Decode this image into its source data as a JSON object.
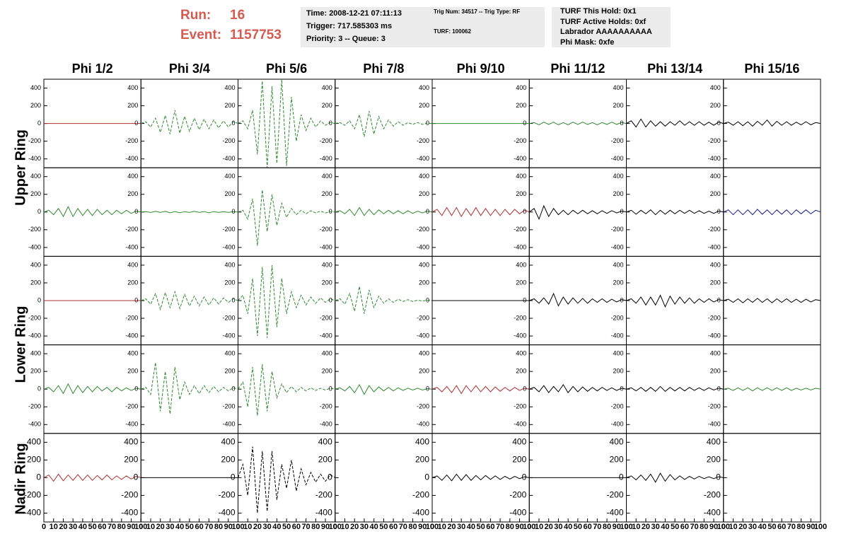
{
  "header": {
    "run_label": "Run:",
    "run": 16,
    "event_label": "Event:",
    "event": 1157753
  },
  "info_boxes": [
    [
      "Time: 2008-12-21 07:11:13",
      "Trigger: 717.585303 ms",
      "Priority: 3 -- Queue: 3"
    ],
    [
      "Trig Num: 34517 -- Trig Type: RF",
      "TURF: 100062"
    ],
    [
      "TURF This Hold: 0x1",
      "TURF Active Holds: 0xf",
      "Labrador AAAAAAAAAA",
      "Phi Mask: 0xfe"
    ]
  ],
  "columns": [
    "Phi 1/2",
    "Phi 3/4",
    "Phi 5/6",
    "Phi 7/8",
    "Phi 9/10",
    "Phi 11/12",
    "Phi 13/14",
    "Phi 15/16"
  ],
  "row_labels": [
    "Upper Ring",
    "Lower Ring",
    "Nadir Ring"
  ],
  "x": [
    0,
    5,
    10,
    15,
    20,
    25,
    30,
    35,
    40,
    45,
    50,
    55,
    60,
    65,
    70,
    75,
    80,
    85,
    90,
    95,
    100
  ],
  "xlim": [
    0,
    100
  ],
  "xticks": [
    0,
    10,
    20,
    30,
    40,
    50,
    60,
    70,
    80,
    90,
    100
  ],
  "ylim": [
    -500,
    500
  ],
  "yticks": [
    -400,
    -200,
    0,
    200,
    400
  ],
  "panels": [
    [
      {
        "color": "#b03030",
        "dashed": false,
        "values": [
          0,
          0,
          0,
          0,
          0,
          0,
          0,
          0,
          0,
          0,
          0,
          0,
          0,
          0,
          0,
          0,
          0,
          0,
          0,
          0,
          0
        ]
      },
      {
        "color": "#2e8b2e",
        "dashed": true,
        "values": [
          0,
          20,
          -40,
          60,
          -100,
          90,
          -120,
          150,
          -110,
          80,
          -90,
          60,
          -70,
          50,
          -60,
          40,
          -50,
          30,
          -40,
          20,
          0
        ]
      },
      {
        "color": "#2e8b2e",
        "dashed": true,
        "values": [
          0,
          30,
          -60,
          150,
          -350,
          480,
          -500,
          420,
          -450,
          500,
          -480,
          300,
          -200,
          100,
          -80,
          60,
          -40,
          30,
          -20,
          10,
          0
        ]
      },
      {
        "color": "#2e8b2e",
        "dashed": true,
        "values": [
          0,
          10,
          -20,
          30,
          -60,
          100,
          -150,
          140,
          -120,
          80,
          -60,
          40,
          -30,
          20,
          -20,
          10,
          -10,
          10,
          -10,
          5,
          0
        ]
      },
      {
        "color": "#2e8b2e",
        "dashed": false,
        "values": [
          0,
          0,
          0,
          0,
          0,
          0,
          0,
          0,
          0,
          0,
          0,
          0,
          0,
          0,
          0,
          0,
          0,
          0,
          0,
          0,
          0
        ]
      },
      {
        "color": "#2e8b2e",
        "dashed": false,
        "values": [
          0,
          10,
          -15,
          15,
          -10,
          15,
          -15,
          10,
          -15,
          15,
          -10,
          15,
          -10,
          10,
          -15,
          10,
          -10,
          15,
          -10,
          10,
          0
        ]
      },
      {
        "color": "#000000",
        "dashed": false,
        "values": [
          0,
          30,
          -40,
          50,
          -40,
          30,
          -30,
          20,
          -30,
          20,
          -20,
          30,
          -20,
          20,
          -20,
          20,
          -20,
          15,
          -20,
          15,
          0
        ]
      },
      {
        "color": "#000000",
        "dashed": false,
        "values": [
          0,
          15,
          -20,
          20,
          -25,
          20,
          -30,
          25,
          -20,
          40,
          -30,
          25,
          -20,
          20,
          -20,
          15,
          -15,
          20,
          -15,
          10,
          0
        ]
      }
    ],
    [
      {
        "color": "#2e8b2e",
        "dashed": false,
        "values": [
          0,
          20,
          -30,
          40,
          -50,
          60,
          -50,
          40,
          -40,
          30,
          -40,
          30,
          -30,
          20,
          -30,
          20,
          -20,
          20,
          -15,
          10,
          0
        ]
      },
      {
        "color": "#2e8b2e",
        "dashed": false,
        "values": [
          0,
          5,
          -5,
          8,
          -5,
          8,
          -8,
          5,
          -8,
          5,
          -5,
          8,
          -5,
          5,
          -8,
          5,
          -5,
          5,
          -5,
          5,
          0
        ]
      },
      {
        "color": "#2e8b2e",
        "dashed": true,
        "values": [
          0,
          20,
          -80,
          150,
          -380,
          250,
          -220,
          200,
          -150,
          100,
          -60,
          40,
          -30,
          20,
          -20,
          15,
          -10,
          10,
          -10,
          5,
          0
        ]
      },
      {
        "color": "#2e8b2e",
        "dashed": false,
        "values": [
          0,
          15,
          -20,
          30,
          -40,
          50,
          -40,
          30,
          -30,
          25,
          -20,
          20,
          -20,
          15,
          -20,
          15,
          -15,
          10,
          -10,
          10,
          0
        ]
      },
      {
        "color": "#b03030",
        "dashed": false,
        "values": [
          0,
          30,
          -40,
          50,
          -40,
          50,
          -50,
          40,
          -40,
          50,
          -40,
          40,
          -40,
          30,
          -40,
          30,
          -30,
          30,
          -20,
          20,
          0
        ]
      },
      {
        "color": "#000000",
        "dashed": false,
        "values": [
          0,
          40,
          -80,
          70,
          -50,
          40,
          -30,
          20,
          -30,
          20,
          -20,
          20,
          -20,
          15,
          -20,
          15,
          -15,
          15,
          -10,
          10,
          0
        ]
      },
      {
        "color": "#000000",
        "dashed": false,
        "values": [
          0,
          20,
          -25,
          20,
          -20,
          25,
          -30,
          20,
          -25,
          20,
          -20,
          20,
          -15,
          20,
          -15,
          15,
          -15,
          10,
          -15,
          10,
          0
        ]
      },
      {
        "color": "#1a1a8c",
        "dashed": false,
        "values": [
          0,
          25,
          -30,
          25,
          -30,
          25,
          -30,
          30,
          -25,
          25,
          -30,
          25,
          -25,
          25,
          -30,
          25,
          -20,
          25,
          -20,
          20,
          0
        ]
      }
    ],
    [
      {
        "color": "#b03030",
        "dashed": false,
        "values": [
          0,
          0,
          0,
          0,
          0,
          0,
          0,
          0,
          0,
          0,
          0,
          0,
          0,
          0,
          0,
          0,
          0,
          0,
          0,
          0,
          0
        ]
      },
      {
        "color": "#2e8b2e",
        "dashed": true,
        "values": [
          0,
          20,
          -40,
          80,
          -100,
          90,
          -80,
          100,
          -90,
          70,
          -60,
          50,
          -60,
          40,
          -50,
          30,
          -40,
          30,
          -20,
          20,
          0
        ]
      },
      {
        "color": "#2e8b2e",
        "dashed": true,
        "values": [
          0,
          60,
          -150,
          250,
          -400,
          380,
          -420,
          400,
          -300,
          250,
          -150,
          100,
          -80,
          60,
          -50,
          40,
          -30,
          30,
          -20,
          20,
          0
        ]
      },
      {
        "color": "#2e8b2e",
        "dashed": true,
        "values": [
          0,
          20,
          -40,
          80,
          -120,
          160,
          -150,
          120,
          -80,
          50,
          -30,
          20,
          -20,
          15,
          -10,
          10,
          -10,
          5,
          -5,
          5,
          0
        ]
      },
      {
        "color": "#000000",
        "dashed": false,
        "values": [
          0,
          0,
          0,
          0,
          0,
          0,
          0,
          0,
          0,
          0,
          0,
          0,
          0,
          0,
          0,
          0,
          0,
          0,
          0,
          0,
          0
        ]
      },
      {
        "color": "#000000",
        "dashed": false,
        "values": [
          0,
          20,
          -30,
          30,
          -40,
          80,
          -60,
          40,
          -40,
          30,
          -30,
          25,
          -30,
          20,
          -20,
          20,
          -20,
          15,
          -15,
          10,
          0
        ]
      },
      {
        "color": "#000000",
        "dashed": false,
        "values": [
          0,
          20,
          -30,
          40,
          -50,
          40,
          -50,
          60,
          -70,
          50,
          -40,
          40,
          -30,
          30,
          -30,
          20,
          -20,
          20,
          -15,
          10,
          0
        ]
      },
      {
        "color": "#000000",
        "dashed": false,
        "values": [
          0,
          15,
          -20,
          20,
          -25,
          20,
          -20,
          25,
          -20,
          20,
          -25,
          20,
          -20,
          20,
          -20,
          15,
          -20,
          15,
          -15,
          10,
          0
        ]
      }
    ],
    [
      {
        "color": "#2e8b2e",
        "dashed": false,
        "values": [
          0,
          20,
          -30,
          40,
          -50,
          60,
          -50,
          40,
          -40,
          30,
          -30,
          30,
          -20,
          20,
          -30,
          20,
          -20,
          15,
          -15,
          10,
          0
        ]
      },
      {
        "color": "#2e8b2e",
        "dashed": true,
        "values": [
          0,
          20,
          -60,
          300,
          -250,
          200,
          -280,
          250,
          -120,
          80,
          -60,
          40,
          -50,
          40,
          -40,
          30,
          -30,
          20,
          -20,
          15,
          0
        ]
      },
      {
        "color": "#2e8b2e",
        "dashed": true,
        "values": [
          0,
          80,
          -200,
          250,
          -300,
          280,
          -250,
          200,
          -100,
          60,
          -40,
          30,
          -30,
          20,
          -20,
          15,
          -15,
          10,
          -10,
          10,
          0
        ]
      },
      {
        "color": "#2e8b2e",
        "dashed": false,
        "values": [
          0,
          15,
          -20,
          30,
          -40,
          50,
          -60,
          40,
          -30,
          25,
          -20,
          20,
          -20,
          15,
          -15,
          10,
          -10,
          10,
          -10,
          5,
          0
        ]
      },
      {
        "color": "#b03030",
        "dashed": false,
        "values": [
          0,
          20,
          -30,
          30,
          -40,
          40,
          -50,
          40,
          -30,
          40,
          -30,
          30,
          -30,
          25,
          -25,
          20,
          -20,
          20,
          -15,
          10,
          0
        ]
      },
      {
        "color": "#000000",
        "dashed": false,
        "values": [
          0,
          20,
          -30,
          40,
          -40,
          30,
          -30,
          50,
          -40,
          30,
          -30,
          25,
          -25,
          20,
          -20,
          20,
          -15,
          15,
          -15,
          10,
          0
        ]
      },
      {
        "color": "#000000",
        "dashed": false,
        "values": [
          0,
          15,
          -20,
          20,
          -25,
          20,
          -25,
          30,
          -25,
          20,
          -20,
          20,
          -20,
          20,
          -15,
          15,
          -15,
          15,
          -10,
          10,
          0
        ]
      },
      {
        "color": "#2e8b2e",
        "dashed": false,
        "values": [
          0,
          10,
          -15,
          15,
          -15,
          15,
          -20,
          15,
          -15,
          15,
          -15,
          15,
          -15,
          15,
          -15,
          10,
          -10,
          10,
          -10,
          10,
          0
        ]
      }
    ],
    [
      {
        "color": "#b03030",
        "dashed": false,
        "values": [
          0,
          30,
          -40,
          40,
          -35,
          30,
          -30,
          35,
          -30,
          30,
          -30,
          25,
          -25,
          30,
          -25,
          20,
          -20,
          20,
          -15,
          15,
          0
        ]
      },
      {
        "color": "#000000",
        "dashed": false,
        "values": [
          0,
          0,
          0,
          0,
          0,
          0,
          0,
          0,
          0,
          0,
          0,
          0,
          0,
          0,
          0,
          0,
          0,
          0,
          0,
          0,
          0
        ]
      },
      {
        "color": "#000000",
        "dashed": true,
        "values": [
          0,
          150,
          -200,
          350,
          -400,
          300,
          -380,
          300,
          -250,
          150,
          -120,
          200,
          -150,
          100,
          -80,
          60,
          -50,
          40,
          -40,
          30,
          0
        ]
      },
      null,
      {
        "color": "#000000",
        "dashed": false,
        "values": [
          0,
          20,
          -30,
          30,
          -35,
          40,
          -30,
          35,
          -30,
          25,
          -25,
          25,
          -20,
          20,
          -20,
          15,
          -15,
          15,
          -10,
          10,
          0
        ]
      },
      {
        "color": "#000000",
        "dashed": false,
        "values": [
          0,
          0,
          0,
          0,
          0,
          0,
          0,
          0,
          0,
          0,
          0,
          0,
          0,
          0,
          0,
          0,
          0,
          0,
          0,
          0,
          0
        ]
      },
      {
        "color": "#000000",
        "dashed": false,
        "values": [
          0,
          20,
          -25,
          30,
          -30,
          40,
          -50,
          50,
          -40,
          35,
          -25,
          20,
          -20,
          15,
          -15,
          15,
          -10,
          10,
          -10,
          10,
          0
        ]
      },
      null
    ]
  ]
}
